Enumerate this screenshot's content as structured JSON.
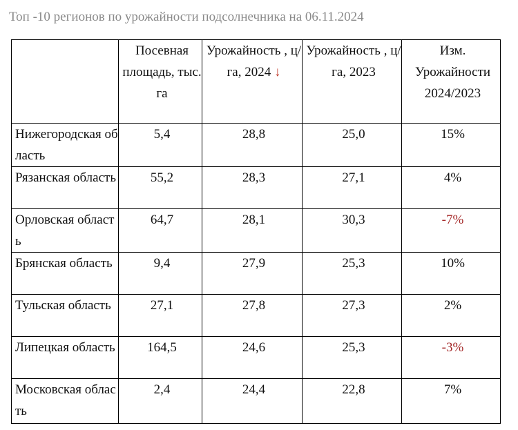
{
  "title": "Топ -10 регионов по урожайности подсолнечника на 06.11.2024",
  "table": {
    "headers": {
      "region": "",
      "area": "Посевная площадь, тыс. га",
      "yield_2024": "Урожайность , ц/га, 2024",
      "yield_2024_sort_icon": "↓",
      "yield_2023": "Урожайность , ц/га, 2023",
      "change": "Изм. Урожайности 2024/2023"
    },
    "rows": [
      {
        "region": "Нижегородская область",
        "area": "5,4",
        "yield_2024": "28,8",
        "yield_2023": "25,0",
        "change": "15%",
        "negative": false
      },
      {
        "region": "Рязанская область",
        "area": "55,2",
        "yield_2024": "28,3",
        "yield_2023": "27,1",
        "change": "4%",
        "negative": false
      },
      {
        "region": "Орловская область",
        "area": "64,7",
        "yield_2024": "28,1",
        "yield_2023": "30,3",
        "change": "-7%",
        "negative": true
      },
      {
        "region": "Брянская область",
        "area": "9,4",
        "yield_2024": "27,9",
        "yield_2023": "25,3",
        "change": "10%",
        "negative": false
      },
      {
        "region": "Тульская область",
        "area": "27,1",
        "yield_2024": "27,8",
        "yield_2023": "27,3",
        "change": "2%",
        "negative": false
      },
      {
        "region": "Липецкая область",
        "area": "164,5",
        "yield_2024": "24,6",
        "yield_2023": "25,3",
        "change": "-3%",
        "negative": true
      },
      {
        "region": "Московская область",
        "area": "2,4",
        "yield_2024": "24,4",
        "yield_2023": "22,8",
        "change": "7%",
        "negative": false
      }
    ]
  },
  "colors": {
    "title_text": "#8a8a8a",
    "negative_value": "#a52a2a",
    "sort_arrow": "#c0392b",
    "border": "#000000"
  }
}
